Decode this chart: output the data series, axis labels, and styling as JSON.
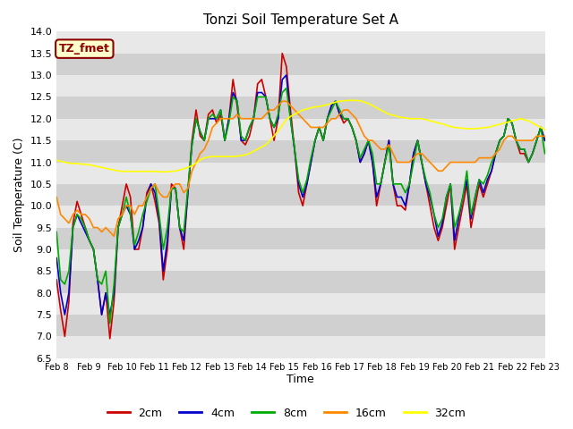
{
  "title": "Tonzi Soil Temperature Set A",
  "xlabel": "Time",
  "ylabel": "Soil Temperature (C)",
  "ylim": [
    6.5,
    14.0
  ],
  "yticks": [
    6.5,
    7.0,
    7.5,
    8.0,
    8.5,
    9.0,
    9.5,
    10.0,
    10.5,
    11.0,
    11.5,
    12.0,
    12.5,
    13.0,
    13.5,
    14.0
  ],
  "xtick_labels": [
    "Feb 8",
    "Feb 9",
    "Feb 10",
    "Feb 11",
    "Feb 12",
    "Feb 13",
    "Feb 14",
    "Feb 15",
    "Feb 16",
    "Feb 17",
    "Feb 18",
    "Feb 19",
    "Feb 20",
    "Feb 21",
    "Feb 22",
    "Feb 23"
  ],
  "series_colors": [
    "#cc0000",
    "#0000cc",
    "#00aa00",
    "#ff8800",
    "#ffff00"
  ],
  "series_labels": [
    "2cm",
    "4cm",
    "8cm",
    "16cm",
    "32cm"
  ],
  "fig_facecolor": "#ffffff",
  "plot_bg_light": "#e8e8e8",
  "plot_bg_dark": "#d0d0d0",
  "annotation_text": "TZ_fmet",
  "annotation_bg": "#ffffcc",
  "annotation_border": "#8b0000",
  "days": 15,
  "t_2cm": [
    8.3,
    7.6,
    7.0,
    7.8,
    9.6,
    10.1,
    9.8,
    9.5,
    9.2,
    9.0,
    8.3,
    7.5,
    8.0,
    6.95,
    7.8,
    9.5,
    10.0,
    10.5,
    10.2,
    9.0,
    9.0,
    9.5,
    10.3,
    10.5,
    10.1,
    9.6,
    8.3,
    9.0,
    10.5,
    10.4,
    9.5,
    9.0,
    10.3,
    11.5,
    12.2,
    11.6,
    11.5,
    12.1,
    12.2,
    11.9,
    12.1,
    11.5,
    12.0,
    12.9,
    12.3,
    11.5,
    11.4,
    11.6,
    12.0,
    12.8,
    12.9,
    12.5,
    12.0,
    11.5,
    12.0,
    13.5,
    13.2,
    12.2,
    11.3,
    10.3,
    10.0,
    10.5,
    11.0,
    11.5,
    11.8,
    11.5,
    12.0,
    12.3,
    12.4,
    12.1,
    11.9,
    12.0,
    11.8,
    11.5,
    11.0,
    11.2,
    11.5,
    11.0,
    10.0,
    10.5,
    11.0,
    11.5,
    10.5,
    10.0,
    10.0,
    9.9,
    10.5,
    11.2,
    11.5,
    11.0,
    10.5,
    10.0,
    9.5,
    9.2,
    9.5,
    10.0,
    10.5,
    9.0,
    9.5,
    10.0,
    10.5,
    9.5,
    10.0,
    10.5,
    10.2,
    10.5,
    10.8,
    11.2,
    11.5,
    11.6,
    12.0,
    11.9,
    11.5,
    11.2,
    11.2,
    11.0,
    11.2,
    11.5,
    11.8,
    11.5
  ],
  "t_4cm": [
    8.8,
    8.0,
    7.5,
    8.0,
    9.5,
    9.8,
    9.6,
    9.4,
    9.2,
    9.0,
    8.3,
    7.5,
    8.0,
    7.5,
    8.0,
    9.5,
    9.8,
    10.0,
    9.8,
    9.0,
    9.2,
    9.5,
    10.2,
    10.5,
    10.3,
    9.7,
    8.5,
    9.2,
    10.4,
    10.4,
    9.5,
    9.2,
    10.3,
    11.4,
    12.0,
    11.7,
    11.5,
    12.0,
    12.0,
    12.0,
    12.2,
    11.5,
    12.0,
    12.6,
    12.4,
    11.5,
    11.5,
    11.8,
    12.0,
    12.6,
    12.6,
    12.5,
    12.0,
    11.8,
    12.0,
    12.9,
    13.0,
    12.0,
    11.3,
    10.5,
    10.2,
    10.5,
    11.0,
    11.5,
    11.8,
    11.5,
    12.0,
    12.3,
    12.4,
    12.1,
    12.0,
    12.0,
    11.8,
    11.5,
    11.0,
    11.2,
    11.5,
    11.0,
    10.2,
    10.5,
    11.0,
    11.5,
    10.5,
    10.2,
    10.2,
    10.0,
    10.5,
    11.2,
    11.5,
    11.0,
    10.5,
    10.2,
    9.8,
    9.3,
    9.6,
    10.2,
    10.5,
    9.2,
    9.7,
    10.2,
    10.6,
    9.7,
    10.2,
    10.6,
    10.3,
    10.6,
    10.8,
    11.2,
    11.5,
    11.6,
    12.0,
    11.9,
    11.5,
    11.3,
    11.3,
    11.0,
    11.2,
    11.5,
    11.8,
    11.5
  ],
  "t_8cm": [
    9.4,
    8.3,
    8.2,
    8.5,
    9.5,
    9.8,
    9.7,
    9.5,
    9.2,
    9.0,
    8.3,
    8.2,
    8.5,
    7.3,
    8.2,
    9.5,
    9.8,
    10.2,
    9.8,
    9.1,
    9.4,
    9.8,
    10.1,
    10.4,
    10.5,
    9.8,
    9.0,
    9.5,
    10.4,
    10.4,
    9.5,
    9.4,
    10.4,
    11.4,
    12.0,
    11.7,
    11.5,
    12.0,
    12.1,
    12.0,
    12.2,
    11.5,
    11.9,
    12.5,
    12.4,
    11.6,
    11.5,
    11.8,
    12.0,
    12.5,
    12.5,
    12.5,
    12.0,
    11.8,
    12.1,
    12.6,
    12.7,
    12.0,
    11.3,
    10.6,
    10.3,
    10.6,
    11.1,
    11.5,
    11.8,
    11.5,
    12.0,
    12.2,
    12.4,
    12.2,
    12.0,
    12.0,
    11.8,
    11.5,
    11.1,
    11.3,
    11.5,
    11.2,
    10.5,
    10.5,
    11.0,
    11.4,
    10.5,
    10.5,
    10.5,
    10.3,
    10.5,
    11.0,
    11.5,
    11.0,
    10.6,
    10.3,
    9.8,
    9.5,
    9.7,
    10.2,
    10.5,
    9.5,
    9.8,
    10.2,
    10.8,
    9.8,
    10.2,
    10.6,
    10.5,
    10.7,
    11.0,
    11.2,
    11.5,
    11.6,
    12.0,
    11.9,
    11.5,
    11.3,
    11.3,
    11.0,
    11.2,
    11.5,
    11.8,
    11.2
  ],
  "t_16cm": [
    10.2,
    9.8,
    9.7,
    9.6,
    9.8,
    9.9,
    9.8,
    9.8,
    9.7,
    9.5,
    9.5,
    9.4,
    9.5,
    9.4,
    9.3,
    9.7,
    9.8,
    10.0,
    10.0,
    9.8,
    10.0,
    10.0,
    10.2,
    10.4,
    10.5,
    10.3,
    10.2,
    10.2,
    10.4,
    10.5,
    10.5,
    10.3,
    10.4,
    10.8,
    11.0,
    11.2,
    11.3,
    11.5,
    11.8,
    11.9,
    12.0,
    12.0,
    12.0,
    12.0,
    12.1,
    12.0,
    12.0,
    12.0,
    12.0,
    12.0,
    12.0,
    12.1,
    12.2,
    12.2,
    12.3,
    12.4,
    12.4,
    12.3,
    12.2,
    12.1,
    12.0,
    11.9,
    11.8,
    11.8,
    11.8,
    11.8,
    11.9,
    12.0,
    12.0,
    12.1,
    12.2,
    12.2,
    12.1,
    12.0,
    11.8,
    11.6,
    11.5,
    11.5,
    11.4,
    11.3,
    11.3,
    11.4,
    11.2,
    11.0,
    11.0,
    11.0,
    11.0,
    11.1,
    11.2,
    11.2,
    11.1,
    11.0,
    10.9,
    10.8,
    10.8,
    10.9,
    11.0,
    11.0,
    11.0,
    11.0,
    11.0,
    11.0,
    11.0,
    11.1,
    11.1,
    11.1,
    11.1,
    11.2,
    11.3,
    11.5,
    11.6,
    11.6,
    11.5,
    11.5,
    11.5,
    11.5,
    11.5,
    11.6,
    11.6,
    11.6
  ],
  "t_32cm": [
    11.05,
    11.02,
    11.0,
    10.98,
    10.97,
    10.97,
    10.96,
    10.95,
    10.94,
    10.92,
    10.9,
    10.88,
    10.86,
    10.84,
    10.82,
    10.8,
    10.79,
    10.79,
    10.79,
    10.79,
    10.79,
    10.79,
    10.79,
    10.79,
    10.79,
    10.78,
    10.78,
    10.78,
    10.79,
    10.8,
    10.82,
    10.85,
    10.88,
    10.92,
    10.98,
    11.05,
    11.1,
    11.12,
    11.13,
    11.13,
    11.13,
    11.13,
    11.13,
    11.13,
    11.14,
    11.15,
    11.17,
    11.2,
    11.25,
    11.3,
    11.35,
    11.4,
    11.5,
    11.6,
    11.72,
    11.85,
    11.98,
    12.05,
    12.1,
    12.15,
    12.2,
    12.22,
    12.25,
    12.27,
    12.28,
    12.3,
    12.32,
    12.35,
    12.38,
    12.4,
    12.41,
    12.42,
    12.42,
    12.42,
    12.41,
    12.38,
    12.35,
    12.3,
    12.25,
    12.2,
    12.15,
    12.1,
    12.08,
    12.05,
    12.03,
    12.02,
    12.0,
    12.0,
    12.0,
    12.0,
    11.98,
    11.95,
    11.93,
    11.9,
    11.88,
    11.85,
    11.82,
    11.8,
    11.79,
    11.78,
    11.77,
    11.77,
    11.77,
    11.78,
    11.79,
    11.8,
    11.82,
    11.85,
    11.87,
    11.9,
    11.92,
    11.95,
    11.97,
    12.0,
    11.98,
    11.95,
    11.9,
    11.85,
    11.8,
    11.75
  ]
}
